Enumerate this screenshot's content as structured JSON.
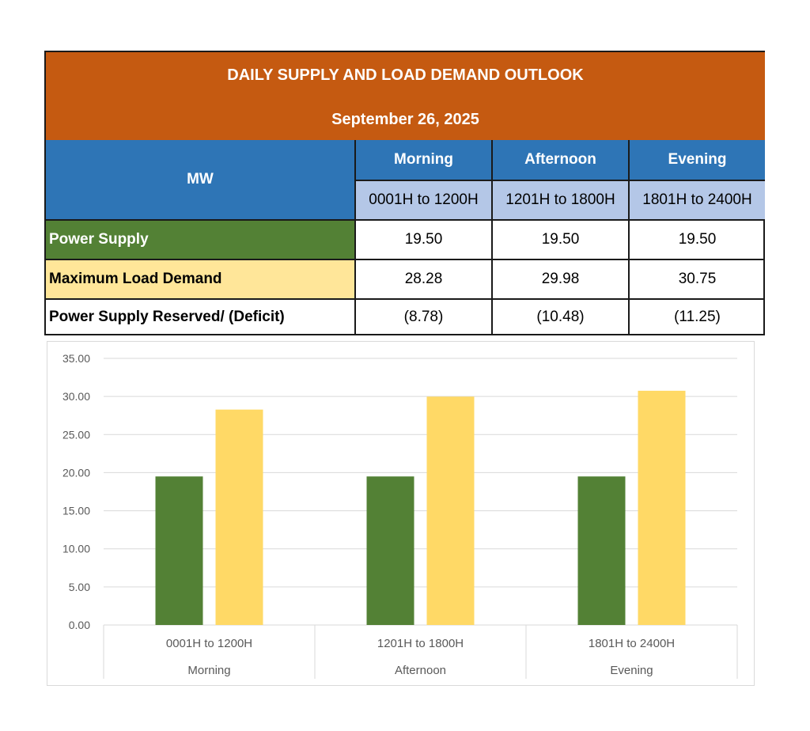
{
  "table": {
    "title": "DAILY SUPPLY AND LOAD DEMAND OUTLOOK",
    "date": "September 26, 2025",
    "unit_header": "MW",
    "periods": [
      {
        "name": "Morning",
        "range": "0001H to 1200H"
      },
      {
        "name": "Afternoon",
        "range": "1201H to 1800H"
      },
      {
        "name": "Evening",
        "range": "1801H to 2400H"
      }
    ],
    "rows": [
      {
        "label": "Power Supply",
        "values": [
          "19.50",
          "19.50",
          "19.50"
        ]
      },
      {
        "label": "Maximum Load Demand",
        "values": [
          "28.28",
          "29.98",
          "30.75"
        ]
      },
      {
        "label": "Power Supply Reserved/ (Deficit)",
        "values": [
          "(8.78)",
          "(10.48)",
          "(11.25)"
        ]
      }
    ]
  },
  "colors": {
    "title_bg": "#c55a11",
    "header_blue": "#2e75b6",
    "header_light": "#b4c7e7",
    "supply_green": "#538135",
    "demand_yellow": "#ffd966",
    "demand_row_bg": "#ffe699"
  },
  "chart_data": {
    "type": "bar",
    "categories": [
      {
        "range": "0001H to 1200H",
        "period": "Morning"
      },
      {
        "range": "1201H to 1800H",
        "period": "Afternoon"
      },
      {
        "range": "1801H to 2400H",
        "period": "Evening"
      }
    ],
    "series": [
      {
        "values": [
          19.5,
          19.5,
          19.5
        ],
        "color": "#538135"
      },
      {
        "values": [
          28.28,
          29.98,
          30.75
        ],
        "color": "#ffd966"
      }
    ],
    "ylim": [
      0,
      35
    ],
    "yticks": [
      "0.00",
      "5.00",
      "10.00",
      "15.00",
      "20.00",
      "25.00",
      "30.00",
      "35.00"
    ],
    "grid": true,
    "legend": "none"
  }
}
